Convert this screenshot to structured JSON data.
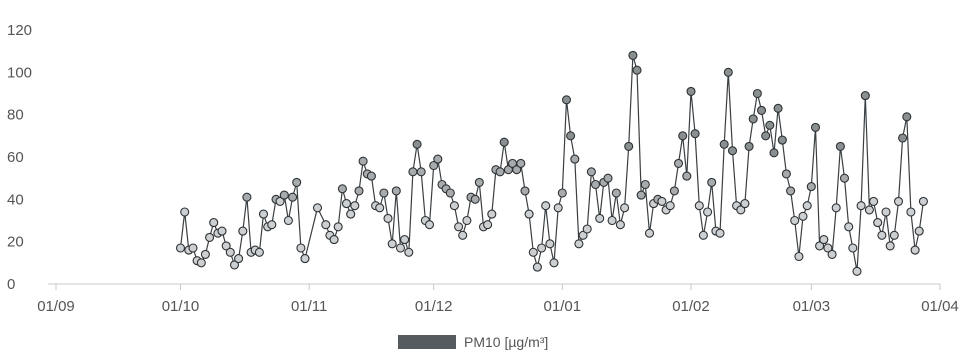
{
  "chart_data": {
    "type": "line",
    "x_axis": {
      "ticks": [
        "01/09",
        "01/10",
        "01/11",
        "01/12",
        "01/01",
        "01/02",
        "01/03",
        "01/04"
      ]
    },
    "y_axis": {
      "ticks": [
        "0",
        "20",
        "40",
        "60",
        "80",
        "100",
        "120"
      ],
      "ylim": [
        0,
        120
      ]
    },
    "grid": false,
    "legend_position": "bottom-center",
    "series": [
      {
        "name": "PM10 [µg/m³]",
        "color": "#555b5e",
        "marker": "circle",
        "values": [
          [
            "2023-10-01",
            17
          ],
          [
            "2023-10-02",
            34
          ],
          [
            "2023-10-03",
            16
          ],
          [
            "2023-10-04",
            17
          ],
          [
            "2023-10-05",
            11
          ],
          [
            "2023-10-06",
            10
          ],
          [
            "2023-10-07",
            14
          ],
          [
            "2023-10-08",
            22
          ],
          [
            "2023-10-09",
            29
          ],
          [
            "2023-10-10",
            24
          ],
          [
            "2023-10-11",
            25
          ],
          [
            "2023-10-12",
            18
          ],
          [
            "2023-10-13",
            15
          ],
          [
            "2023-10-14",
            9
          ],
          [
            "2023-10-15",
            12
          ],
          [
            "2023-10-16",
            25
          ],
          [
            "2023-10-17",
            41
          ],
          [
            "2023-10-18",
            15
          ],
          [
            "2023-10-19",
            16
          ],
          [
            "2023-10-20",
            15
          ],
          [
            "2023-10-21",
            33
          ],
          [
            "2023-10-22",
            27
          ],
          [
            "2023-10-23",
            28
          ],
          [
            "2023-10-24",
            40
          ],
          [
            "2023-10-25",
            39
          ],
          [
            "2023-10-26",
            42
          ],
          [
            "2023-10-27",
            30
          ],
          [
            "2023-10-28",
            41
          ],
          [
            "2023-10-29",
            48
          ],
          [
            "2023-10-30",
            17
          ],
          [
            "2023-10-31",
            12
          ],
          [
            "2023-11-03",
            36
          ],
          [
            "2023-11-05",
            28
          ],
          [
            "2023-11-06",
            23
          ],
          [
            "2023-11-07",
            21
          ],
          [
            "2023-11-08",
            27
          ],
          [
            "2023-11-09",
            45
          ],
          [
            "2023-11-10",
            38
          ],
          [
            "2023-11-11",
            33
          ],
          [
            "2023-11-12",
            37
          ],
          [
            "2023-11-13",
            44
          ],
          [
            "2023-11-14",
            58
          ],
          [
            "2023-11-15",
            52
          ],
          [
            "2023-11-16",
            51
          ],
          [
            "2023-11-17",
            37
          ],
          [
            "2023-11-18",
            36
          ],
          [
            "2023-11-19",
            43
          ],
          [
            "2023-11-20",
            31
          ],
          [
            "2023-11-21",
            19
          ],
          [
            "2023-11-22",
            44
          ],
          [
            "2023-11-23",
            17
          ],
          [
            "2023-11-24",
            21
          ],
          [
            "2023-11-25",
            15
          ],
          [
            "2023-11-26",
            53
          ],
          [
            "2023-11-27",
            66
          ],
          [
            "2023-11-28",
            53
          ],
          [
            "2023-11-29",
            30
          ],
          [
            "2023-11-30",
            28
          ],
          [
            "2023-12-01",
            56
          ],
          [
            "2023-12-02",
            59
          ],
          [
            "2023-12-03",
            47
          ],
          [
            "2023-12-04",
            45
          ],
          [
            "2023-12-05",
            43
          ],
          [
            "2023-12-06",
            37
          ],
          [
            "2023-12-07",
            27
          ],
          [
            "2023-12-08",
            23
          ],
          [
            "2023-12-09",
            30
          ],
          [
            "2023-12-10",
            41
          ],
          [
            "2023-12-11",
            40
          ],
          [
            "2023-12-12",
            48
          ],
          [
            "2023-12-13",
            27
          ],
          [
            "2023-12-14",
            28
          ],
          [
            "2023-12-15",
            33
          ],
          [
            "2023-12-16",
            54
          ],
          [
            "2023-12-17",
            53
          ],
          [
            "2023-12-18",
            67
          ],
          [
            "2023-12-19",
            54
          ],
          [
            "2023-12-20",
            57
          ],
          [
            "2023-12-21",
            54
          ],
          [
            "2023-12-22",
            57
          ],
          [
            "2023-12-23",
            44
          ],
          [
            "2023-12-24",
            33
          ],
          [
            "2023-12-25",
            15
          ],
          [
            "2023-12-26",
            8
          ],
          [
            "2023-12-27",
            17
          ],
          [
            "2023-12-28",
            37
          ],
          [
            "2023-12-29",
            19
          ],
          [
            "2023-12-30",
            10
          ],
          [
            "2023-12-31",
            36
          ],
          [
            "2024-01-01",
            43
          ],
          [
            "2024-01-02",
            87
          ],
          [
            "2024-01-03",
            70
          ],
          [
            "2024-01-04",
            59
          ],
          [
            "2024-01-05",
            19
          ],
          [
            "2024-01-06",
            23
          ],
          [
            "2024-01-07",
            26
          ],
          [
            "2024-01-08",
            53
          ],
          [
            "2024-01-09",
            47
          ],
          [
            "2024-01-10",
            31
          ],
          [
            "2024-01-11",
            48
          ],
          [
            "2024-01-12",
            50
          ],
          [
            "2024-01-13",
            30
          ],
          [
            "2024-01-14",
            43
          ],
          [
            "2024-01-15",
            28
          ],
          [
            "2024-01-16",
            36
          ],
          [
            "2024-01-17",
            65
          ],
          [
            "2024-01-18",
            108
          ],
          [
            "2024-01-19",
            101
          ],
          [
            "2024-01-20",
            42
          ],
          [
            "2024-01-21",
            47
          ],
          [
            "2024-01-22",
            24
          ],
          [
            "2024-01-23",
            38
          ],
          [
            "2024-01-24",
            40
          ],
          [
            "2024-01-25",
            39
          ],
          [
            "2024-01-26",
            35
          ],
          [
            "2024-01-27",
            37
          ],
          [
            "2024-01-28",
            44
          ],
          [
            "2024-01-29",
            57
          ],
          [
            "2024-01-30",
            70
          ],
          [
            "2024-01-31",
            51
          ],
          [
            "2024-02-01",
            91
          ],
          [
            "2024-02-02",
            71
          ],
          [
            "2024-02-03",
            37
          ],
          [
            "2024-02-04",
            23
          ],
          [
            "2024-02-05",
            34
          ],
          [
            "2024-02-06",
            48
          ],
          [
            "2024-02-07",
            25
          ],
          [
            "2024-02-08",
            24
          ],
          [
            "2024-02-09",
            66
          ],
          [
            "2024-02-10",
            100
          ],
          [
            "2024-02-11",
            63
          ],
          [
            "2024-02-12",
            37
          ],
          [
            "2024-02-13",
            35
          ],
          [
            "2024-02-14",
            38
          ],
          [
            "2024-02-15",
            65
          ],
          [
            "2024-02-16",
            78
          ],
          [
            "2024-02-17",
            90
          ],
          [
            "2024-02-18",
            82
          ],
          [
            "2024-02-19",
            70
          ],
          [
            "2024-02-20",
            75
          ],
          [
            "2024-02-21",
            62
          ],
          [
            "2024-02-22",
            83
          ],
          [
            "2024-02-23",
            68
          ],
          [
            "2024-02-24",
            52
          ],
          [
            "2024-02-25",
            44
          ],
          [
            "2024-02-26",
            30
          ],
          [
            "2024-02-27",
            13
          ],
          [
            "2024-02-28",
            32
          ],
          [
            "2024-02-29",
            37
          ],
          [
            "2024-03-01",
            46
          ],
          [
            "2024-03-02",
            74
          ],
          [
            "2024-03-03",
            18
          ],
          [
            "2024-03-04",
            21
          ],
          [
            "2024-03-05",
            17
          ],
          [
            "2024-03-06",
            14
          ],
          [
            "2024-03-07",
            36
          ],
          [
            "2024-03-08",
            65
          ],
          [
            "2024-03-09",
            50
          ],
          [
            "2024-03-10",
            27
          ],
          [
            "2024-03-11",
            17
          ],
          [
            "2024-03-12",
            6
          ],
          [
            "2024-03-13",
            37
          ],
          [
            "2024-03-14",
            89
          ],
          [
            "2024-03-15",
            35
          ],
          [
            "2024-03-16",
            39
          ],
          [
            "2024-03-17",
            29
          ],
          [
            "2024-03-18",
            23
          ],
          [
            "2024-03-19",
            34
          ],
          [
            "2024-03-20",
            18
          ],
          [
            "2024-03-21",
            23
          ],
          [
            "2024-03-22",
            39
          ],
          [
            "2024-03-23",
            69
          ],
          [
            "2024-03-24",
            79
          ],
          [
            "2024-03-25",
            34
          ],
          [
            "2024-03-26",
            16
          ],
          [
            "2024-03-27",
            25
          ],
          [
            "2024-03-28",
            39
          ]
        ]
      }
    ]
  }
}
